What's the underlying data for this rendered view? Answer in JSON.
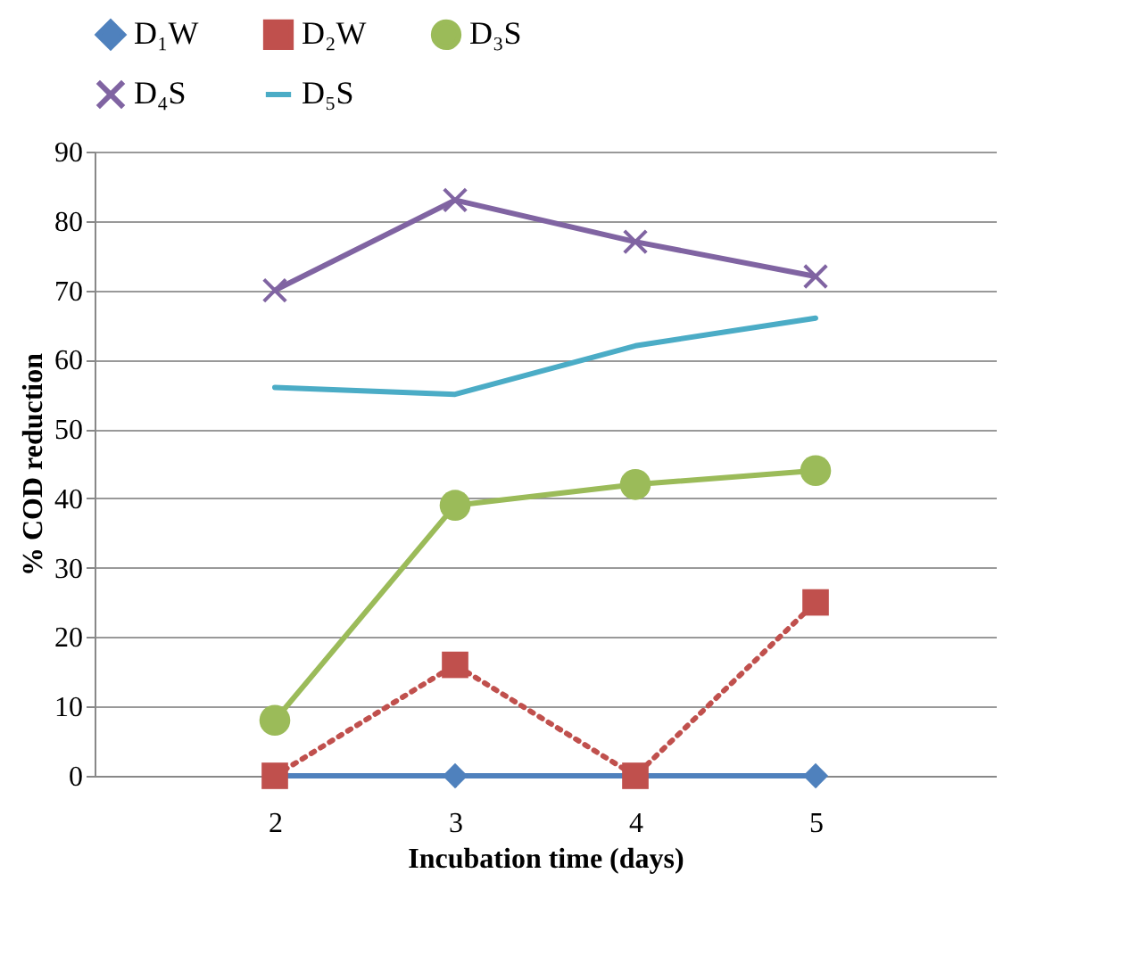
{
  "chart_data": {
    "type": "line",
    "xlabel": "Incubation time (days)",
    "ylabel": "% COD reduction",
    "x": [
      2,
      3,
      4,
      5
    ],
    "xlim": [
      1,
      6
    ],
    "xticks": [
      2,
      3,
      4,
      5
    ],
    "ylim": [
      0,
      90
    ],
    "yticks": [
      0,
      10,
      20,
      30,
      40,
      50,
      60,
      70,
      80,
      90
    ],
    "grid": "y",
    "legend": "top",
    "series": [
      {
        "name": "D₁W",
        "color": "#4f81bd",
        "marker": "diamond",
        "line_style": "solid",
        "values": [
          0,
          0,
          0,
          0
        ]
      },
      {
        "name": "D₂W",
        "color": "#c0504d",
        "marker": "square",
        "line_style": "dotted",
        "values": [
          0,
          16,
          0,
          25
        ]
      },
      {
        "name": "D₃S",
        "color": "#9bbb59",
        "marker": "circle",
        "line_style": "solid",
        "values": [
          8,
          39,
          42,
          44
        ]
      },
      {
        "name": "D₄S",
        "color": "#8064a2",
        "marker": "cross",
        "line_style": "solid",
        "values": [
          70,
          83,
          77,
          72
        ]
      },
      {
        "name": "D₅S",
        "color": "#4bacc6",
        "marker": "none",
        "line_style": "solid",
        "values": [
          56,
          55,
          62,
          66
        ]
      }
    ]
  }
}
